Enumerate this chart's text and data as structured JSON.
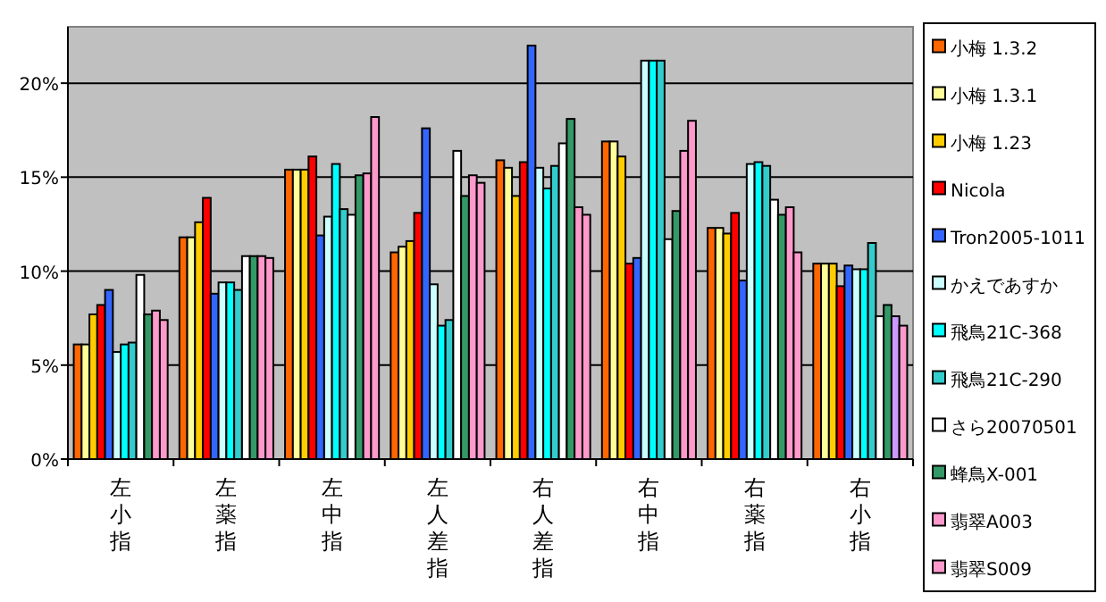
{
  "chart_data": {
    "type": "bar",
    "categories": [
      "左小指",
      "左薬指",
      "左中指",
      "左人差指",
      "右人差指",
      "右中指",
      "右薬指",
      "右小指"
    ],
    "series": [
      {
        "name": "小梅 1.3.2",
        "color": "#ff6600",
        "values": [
          6.1,
          11.8,
          15.4,
          11.0,
          15.9,
          16.9,
          12.3,
          10.4
        ]
      },
      {
        "name": "小梅 1.3.1",
        "color": "#ffff99",
        "values": [
          6.1,
          11.8,
          15.4,
          11.3,
          15.5,
          16.9,
          12.3,
          10.4
        ]
      },
      {
        "name": "小梅 1.23",
        "color": "#ffcc00",
        "values": [
          7.7,
          12.6,
          15.4,
          11.6,
          14.0,
          16.1,
          12.0,
          10.4
        ]
      },
      {
        "name": "Nicola",
        "color": "#ff0000",
        "values": [
          8.2,
          13.9,
          16.1,
          13.1,
          15.8,
          10.4,
          13.1,
          9.2
        ]
      },
      {
        "name": "Tron2005-1011",
        "color": "#3366ff",
        "values": [
          9.0,
          8.8,
          11.9,
          17.6,
          22.0,
          10.7,
          9.5,
          10.3
        ]
      },
      {
        "name": "かえであすか",
        "color": "#ccffff",
        "values": [
          5.7,
          9.4,
          12.9,
          9.3,
          15.5,
          21.2,
          15.7,
          10.1
        ]
      },
      {
        "name": "飛鳥21C-368",
        "color": "#00ffff",
        "values": [
          6.1,
          9.4,
          15.7,
          7.1,
          14.4,
          21.2,
          15.8,
          10.1
        ]
      },
      {
        "name": "飛鳥21C-290",
        "color": "#33cccc",
        "values": [
          6.2,
          9.0,
          13.3,
          7.4,
          15.6,
          21.2,
          15.6,
          11.5
        ]
      },
      {
        "name": "さら20070501",
        "color": "#ffffff",
        "values": [
          9.8,
          10.8,
          13.0,
          16.4,
          16.8,
          11.7,
          13.8,
          7.6
        ]
      },
      {
        "name": "蜂鳥X-001",
        "color": "#339966",
        "values": [
          7.7,
          10.8,
          15.1,
          14.0,
          18.1,
          13.2,
          13.0,
          8.2
        ]
      },
      {
        "name": "翡翠A003",
        "color": "#ff99cc",
        "colors": [
          "#ff99cc",
          "#ff99cc",
          "#ff99cc",
          "#ff99cc",
          "#ff99cc",
          "#ff99cc",
          "#ff99cc",
          "#cc99ff"
        ],
        "values": [
          7.9,
          10.8,
          15.2,
          15.1,
          13.4,
          16.4,
          13.4,
          7.6
        ]
      },
      {
        "name": "翡翠S009",
        "color": "#ff99cc",
        "values": [
          7.4,
          10.7,
          18.2,
          14.7,
          13.0,
          18.0,
          11.0,
          7.1
        ]
      }
    ],
    "ylim": [
      0,
      23
    ],
    "yticks": [
      {
        "value": 0,
        "label": "0%"
      },
      {
        "value": 5,
        "label": "5%"
      },
      {
        "value": 10,
        "label": "10%"
      },
      {
        "value": 15,
        "label": "15%"
      },
      {
        "value": 20,
        "label": "20%"
      }
    ],
    "grid": "y",
    "legend": "right"
  }
}
